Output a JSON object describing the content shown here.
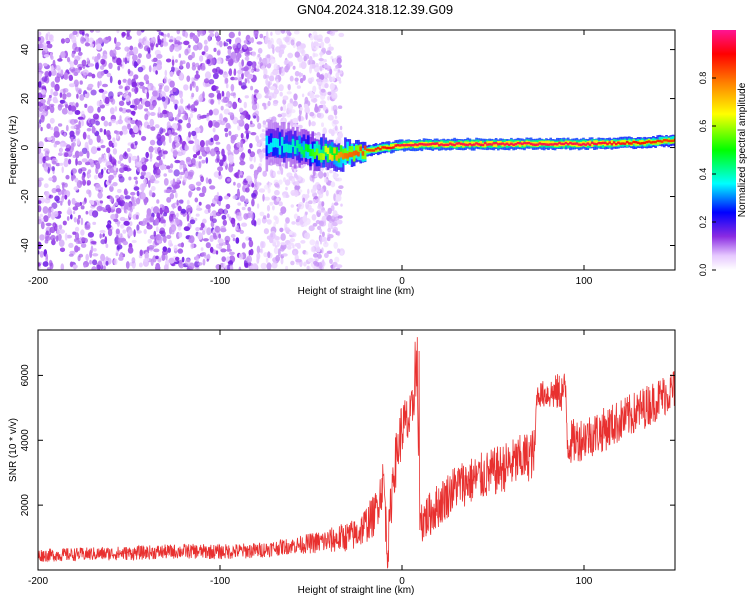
{
  "figure": {
    "title": "GN04.2024.318.12.39.G09"
  },
  "colors": {
    "snr_line": "#e8302f",
    "axis": "#000000",
    "background": "#ffffff"
  },
  "chart_data": [
    {
      "type": "heatmap",
      "xlabel": "Height of straight line (km)",
      "ylabel": "Frequency (Hz)",
      "xlim": [
        -200,
        150
      ],
      "ylim": [
        -50,
        48
      ],
      "xticks": [
        -200,
        -100,
        0,
        100
      ],
      "yticks": [
        -40,
        -20,
        0,
        20,
        40
      ],
      "colorbar": {
        "label": "Normalized spectral amplitude",
        "range": [
          0,
          1
        ],
        "ticks": [
          0.0,
          0.2,
          0.4,
          0.6,
          0.8
        ],
        "tick_labels": [
          "0.0",
          "0.2",
          "0.4",
          "0.6",
          "0.8"
        ],
        "colormap": [
          "#ffffff",
          "#8a2be2",
          "#0000ff",
          "#00ffff",
          "#00ff00",
          "#ffff00",
          "#ff8000",
          "#ff0000",
          "#ff1493"
        ]
      },
      "noise_region": {
        "x_from": -200,
        "x_to": -33,
        "freq_from": -50,
        "freq_to": 48
      },
      "signal_ridge": [
        {
          "x": -75,
          "freq": 1.0,
          "amp": 0.35
        },
        {
          "x": -60,
          "freq": 0.5,
          "amp": 0.4
        },
        {
          "x": -48,
          "freq": -2.0,
          "amp": 0.55
        },
        {
          "x": -32,
          "freq": -3.0,
          "amp": 0.8
        },
        {
          "x": -18,
          "freq": -1.0,
          "amp": 0.85
        },
        {
          "x": -8,
          "freq": 0.0,
          "amp": 0.9
        },
        {
          "x": 0,
          "freq": 1.0,
          "amp": 0.95
        },
        {
          "x": 20,
          "freq": 1.3,
          "amp": 0.95
        },
        {
          "x": 60,
          "freq": 1.5,
          "amp": 0.95
        },
        {
          "x": 100,
          "freq": 1.5,
          "amp": 0.95
        },
        {
          "x": 130,
          "freq": 2.0,
          "amp": 0.9
        },
        {
          "x": 150,
          "freq": 3.0,
          "amp": 0.85
        }
      ]
    },
    {
      "type": "line",
      "xlabel": "Height of straight line (km)",
      "ylabel": "SNR (10 * v/v)",
      "xlim": [
        -200,
        150
      ],
      "ylim": [
        0,
        7400
      ],
      "xticks": [
        -200,
        -100,
        0,
        100
      ],
      "yticks": [
        2000,
        4000,
        6000
      ],
      "series": [
        {
          "values_mean": [
            {
              "x": -200,
              "y": 450
            },
            {
              "x": -180,
              "y": 480
            },
            {
              "x": -150,
              "y": 520
            },
            {
              "x": -120,
              "y": 580
            },
            {
              "x": -100,
              "y": 560
            },
            {
              "x": -80,
              "y": 600
            },
            {
              "x": -60,
              "y": 750
            },
            {
              "x": -40,
              "y": 900
            },
            {
              "x": -25,
              "y": 1100
            },
            {
              "x": -15,
              "y": 1700
            },
            {
              "x": -10,
              "y": 2800
            },
            {
              "x": -8,
              "y": 400
            },
            {
              "x": -5,
              "y": 2900
            },
            {
              "x": 0,
              "y": 4400
            },
            {
              "x": 5,
              "y": 4600
            },
            {
              "x": 8,
              "y": 6300
            },
            {
              "x": 10,
              "y": 1500
            },
            {
              "x": 15,
              "y": 1700
            },
            {
              "x": 30,
              "y": 2600
            },
            {
              "x": 50,
              "y": 3000
            },
            {
              "x": 73,
              "y": 3600
            },
            {
              "x": 74,
              "y": 5400
            },
            {
              "x": 90,
              "y": 5500
            },
            {
              "x": 91,
              "y": 3900
            },
            {
              "x": 110,
              "y": 4300
            },
            {
              "x": 130,
              "y": 4900
            },
            {
              "x": 150,
              "y": 5600
            }
          ],
          "spread": [
            {
              "x": -200,
              "y": 200
            },
            {
              "x": -60,
              "y": 250
            },
            {
              "x": -25,
              "y": 500
            },
            {
              "x": 0,
              "y": 900
            },
            {
              "x": 15,
              "y": 700
            },
            {
              "x": 73,
              "y": 800
            },
            {
              "x": 74,
              "y": 350
            },
            {
              "x": 91,
              "y": 700
            },
            {
              "x": 150,
              "y": 650
            }
          ]
        }
      ]
    }
  ]
}
